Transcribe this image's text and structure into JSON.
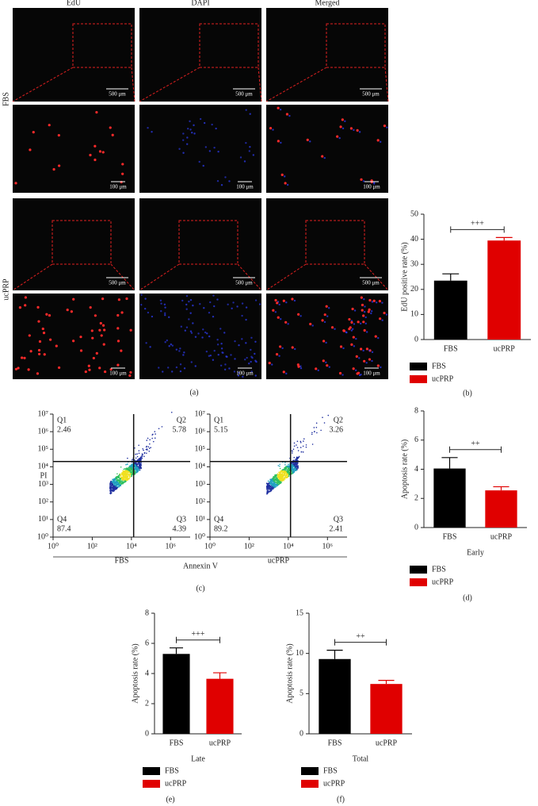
{
  "microscopy": {
    "columns": [
      "EdU",
      "DAPI",
      "Merged"
    ],
    "rows": [
      "FBS",
      "ucPRP"
    ],
    "scale_bars": [
      "500 μm",
      "100 μm"
    ],
    "label": "(a)"
  },
  "flow_figure": {
    "xlabel": "Annexin V",
    "ylabel": "PI",
    "label": "(c)"
  },
  "chart_data": [
    {
      "type": "bar",
      "label": "(b)",
      "ylabel": "EdU positive rate (%)",
      "categories": [
        "FBS",
        "ucPRP"
      ],
      "values": [
        23.5,
        39.5
      ],
      "errors": [
        2.7,
        1.2
      ],
      "colors": [
        "#000000",
        "#e00000"
      ],
      "ylim": [
        0,
        50
      ],
      "yticks": [
        0,
        10,
        20,
        30,
        40,
        50
      ],
      "annotation": "+++"
    },
    {
      "type": "flow",
      "xlabel": "FBS",
      "log": true,
      "xlim": [
        1,
        10000000
      ],
      "ylim": [
        1,
        10000000
      ],
      "xticks": [
        {
          "value": 1,
          "label": "10⁰"
        },
        {
          "value": 100,
          "label": "10²"
        },
        {
          "value": 10000,
          "label": "10⁴"
        },
        {
          "value": 1000000,
          "label": "10⁶"
        }
      ],
      "yticks": [
        {
          "value": 1,
          "label": "10⁰"
        },
        {
          "value": 10,
          "label": "10¹"
        },
        {
          "value": 100,
          "label": "10²"
        },
        {
          "value": 1000,
          "label": "10³"
        },
        {
          "value": 10000,
          "label": "10⁴"
        },
        {
          "value": 100000,
          "label": "10⁵"
        },
        {
          "value": 1000000,
          "label": "10⁶"
        },
        {
          "value": 10000000,
          "label": "10⁷"
        }
      ],
      "gate": [
        13000,
        20000
      ],
      "quadrants": [
        {
          "name": "Q1",
          "value": 2.46
        },
        {
          "name": "Q2",
          "value": 5.78
        },
        {
          "name": "Q3",
          "value": 4.39
        },
        {
          "name": "Q4",
          "value": 87.4
        }
      ]
    },
    {
      "type": "flow",
      "xlabel": "ucPRP",
      "log": true,
      "xlim": [
        1,
        10000000
      ],
      "ylim": [
        1,
        10000000
      ],
      "xticks": [
        {
          "value": 1,
          "label": "10⁰"
        },
        {
          "value": 100,
          "label": "10²"
        },
        {
          "value": 10000,
          "label": "10⁴"
        },
        {
          "value": 1000000,
          "label": "10⁶"
        }
      ],
      "yticks": [
        {
          "value": 1,
          "label": "10⁰"
        },
        {
          "value": 10,
          "label": "10¹"
        },
        {
          "value": 100,
          "label": "10²"
        },
        {
          "value": 1000,
          "label": "10³"
        },
        {
          "value": 10000,
          "label": "10⁴"
        },
        {
          "value": 100000,
          "label": "10⁵"
        },
        {
          "value": 1000000,
          "label": "10⁶"
        },
        {
          "value": 10000000,
          "label": "10⁷"
        }
      ],
      "gate": [
        13000,
        20000
      ],
      "quadrants": [
        {
          "name": "Q1",
          "value": 5.15
        },
        {
          "name": "Q2",
          "value": 3.26
        },
        {
          "name": "Q3",
          "value": 2.41
        },
        {
          "name": "Q4",
          "value": 89.2
        }
      ]
    },
    {
      "type": "bar",
      "label": "(d)",
      "ylabel": "Apoptosis rate (%)",
      "xlabel": "Early",
      "categories": [
        "FBS",
        "ucPRP"
      ],
      "values": [
        4.05,
        2.55
      ],
      "errors": [
        0.75,
        0.25
      ],
      "colors": [
        "#000000",
        "#e00000"
      ],
      "ylim": [
        0,
        8
      ],
      "yticks": [
        0,
        2,
        4,
        6,
        8
      ],
      "annotation": "++"
    },
    {
      "type": "bar",
      "label": "(e)",
      "ylabel": "Apoptosis rate (%)",
      "xlabel": "Late",
      "categories": [
        "FBS",
        "ucPRP"
      ],
      "values": [
        5.3,
        3.65
      ],
      "errors": [
        0.4,
        0.4
      ],
      "colors": [
        "#000000",
        "#e00000"
      ],
      "ylim": [
        0,
        8
      ],
      "yticks": [
        0,
        2,
        4,
        6,
        8
      ],
      "annotation": "+++"
    },
    {
      "type": "bar",
      "label": "(f)",
      "ylabel": "Apoptosis rate (%)",
      "xlabel": "Total",
      "categories": [
        "FBS",
        "ucPRP"
      ],
      "values": [
        9.3,
        6.2
      ],
      "errors": [
        1.1,
        0.45
      ],
      "colors": [
        "#000000",
        "#e00000"
      ],
      "ylim": [
        0,
        15
      ],
      "yticks": [
        0,
        5,
        10,
        15
      ],
      "annotation": "++"
    }
  ]
}
